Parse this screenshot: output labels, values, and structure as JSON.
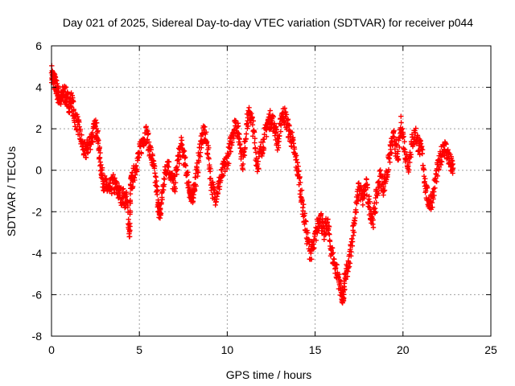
{
  "chart_data": {
    "type": "scatter",
    "title": "Day 021 of 2025, Sidereal Day-to-day VTEC variation (SDTVAR) for receiver p044",
    "xlabel": "GPS time / hours",
    "ylabel": "SDTVAR / TECUs",
    "xlim": [
      0,
      25
    ],
    "ylim": [
      -8,
      6
    ],
    "xticks": [
      0,
      5,
      10,
      15,
      20,
      25
    ],
    "yticks": [
      -8,
      -6,
      -4,
      -2,
      0,
      2,
      4,
      6
    ],
    "grid": true,
    "marker": "+",
    "series": [
      {
        "name": "SDTVAR",
        "color": "#ff0000",
        "x": [
          0.0,
          0.1,
          0.2,
          0.3,
          0.4,
          0.55,
          0.7,
          0.85,
          1.0,
          1.15,
          1.3,
          1.5,
          1.7,
          1.9,
          2.1,
          2.3,
          2.5,
          2.6,
          2.75,
          2.9,
          3.1,
          3.3,
          3.5,
          3.7,
          3.9,
          4.1,
          4.3,
          4.45,
          4.5,
          4.6,
          4.8,
          5.0,
          5.2,
          5.4,
          5.6,
          5.8,
          6.0,
          6.1,
          6.2,
          6.4,
          6.6,
          6.8,
          7.0,
          7.2,
          7.4,
          7.6,
          7.8,
          7.95,
          8.1,
          8.3,
          8.5,
          8.7,
          8.9,
          9.1,
          9.3,
          9.5,
          9.7,
          9.9,
          10.1,
          10.3,
          10.5,
          10.7,
          10.9,
          11.1,
          11.3,
          11.5,
          11.7,
          11.9,
          12.1,
          12.3,
          12.5,
          12.7,
          12.9,
          13.1,
          13.3,
          13.5,
          13.7,
          13.9,
          14.1,
          14.3,
          14.5,
          14.7,
          14.9,
          15.1,
          15.3,
          15.5,
          15.7,
          15.9,
          16.1,
          16.3,
          16.5,
          16.6,
          16.7,
          16.9,
          17.1,
          17.3,
          17.5,
          17.7,
          17.9,
          18.1,
          18.3,
          18.5,
          18.7,
          18.9,
          19.1,
          19.3,
          19.5,
          19.7,
          19.9,
          20.1,
          20.3,
          20.5,
          20.7,
          20.9,
          21.1,
          21.3,
          21.5,
          21.7,
          21.9,
          22.1,
          22.3,
          22.5,
          22.7,
          22.85
        ],
        "y": [
          4.7,
          4.4,
          4.2,
          3.9,
          3.6,
          3.4,
          3.8,
          3.5,
          3.2,
          3.4,
          2.6,
          2.2,
          1.4,
          0.8,
          1.2,
          1.6,
          2.1,
          1.8,
          0.6,
          -0.4,
          -0.8,
          -1.0,
          -0.6,
          -0.9,
          -1.2,
          -1.3,
          -1.5,
          -3.2,
          -0.7,
          -0.5,
          0.2,
          0.8,
          1.5,
          1.8,
          1.0,
          0.2,
          -1.0,
          -2.0,
          -2.1,
          -0.4,
          0.4,
          -0.3,
          -0.8,
          0.5,
          1.2,
          0.3,
          -0.6,
          -1.5,
          -0.9,
          0.0,
          1.4,
          1.8,
          1.0,
          -0.7,
          -1.3,
          -0.8,
          -0.2,
          0.3,
          0.8,
          1.8,
          2.3,
          1.5,
          0.3,
          2.2,
          2.8,
          1.9,
          0.2,
          0.9,
          1.5,
          2.3,
          2.5,
          2.1,
          1.2,
          2.7,
          2.6,
          1.9,
          1.4,
          0.5,
          -0.4,
          -1.8,
          -3.0,
          -3.9,
          -3.8,
          -2.8,
          -2.2,
          -3.1,
          -2.5,
          -3.8,
          -4.5,
          -5.1,
          -5.9,
          -6.3,
          -5.2,
          -4.7,
          -3.3,
          -2.0,
          -0.8,
          -1.4,
          -0.7,
          -1.8,
          -2.4,
          -1.2,
          -0.3,
          -0.8,
          -0.1,
          1.0,
          1.6,
          0.5,
          2.3,
          1.0,
          0.2,
          1.3,
          1.8,
          1.2,
          0.8,
          -1.0,
          -1.6,
          -1.3,
          -0.2,
          0.4,
          1.2,
          0.9,
          0.3,
          0.1
        ]
      }
    ]
  }
}
